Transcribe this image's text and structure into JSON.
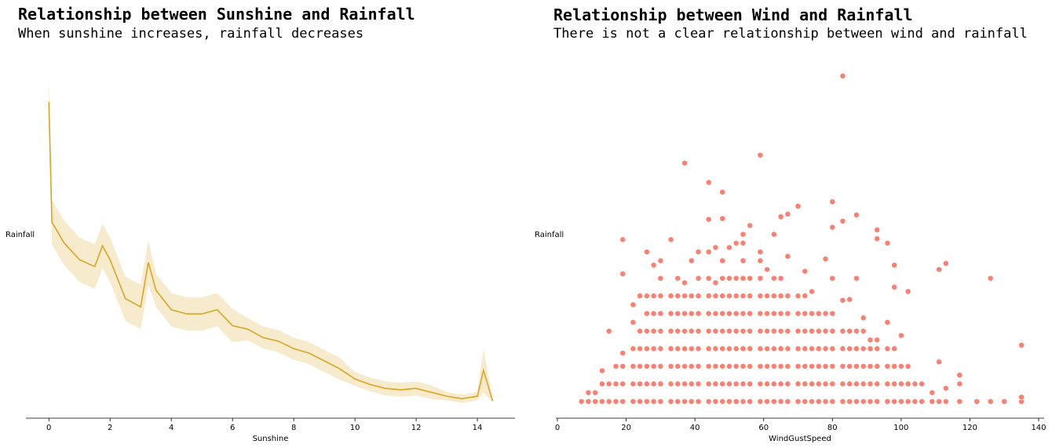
{
  "chart_data": [
    {
      "type": "line",
      "title": "Relationship between Sunshine and Rainfall",
      "subtitle": "When sunshine increases, rainfall decreases",
      "xlabel": "Sunshine",
      "ylabel": "Rainfall",
      "color": "#daa520",
      "x": [
        0,
        0.1,
        0.5,
        1,
        1.5,
        1.75,
        2,
        2.5,
        3,
        3.25,
        3.5,
        4,
        4.5,
        5,
        5.5,
        6,
        6.5,
        7,
        7.5,
        8,
        8.5,
        9,
        9.5,
        10,
        10.5,
        11,
        11.5,
        12,
        12.5,
        13,
        13.5,
        14,
        14.2,
        14.5
      ],
      "values": [
        10.87,
        6.55,
        5.8,
        5.2,
        4.95,
        5.7,
        5.2,
        3.8,
        3.5,
        5.1,
        4.1,
        3.4,
        3.25,
        3.25,
        3.4,
        2.83,
        2.7,
        2.4,
        2.27,
        2.0,
        1.84,
        1.56,
        1.28,
        0.91,
        0.71,
        0.57,
        0.52,
        0.57,
        0.43,
        0.29,
        0.2,
        0.29,
        1.22,
        0.12
      ],
      "ci_lower": [
        9.92,
        5.75,
        5.0,
        4.4,
        4.15,
        4.9,
        4.4,
        3.0,
        2.7,
        4.3,
        3.5,
        2.8,
        2.65,
        2.65,
        2.8,
        2.23,
        2.3,
        2.0,
        1.87,
        1.6,
        1.44,
        1.16,
        0.88,
        0.66,
        0.46,
        0.32,
        0.27,
        0.32,
        0.18,
        0.14,
        0.05,
        0.14,
        0.42,
        0.07
      ],
      "ci_upper": [
        11.82,
        7.35,
        6.6,
        6.0,
        5.75,
        6.5,
        6.0,
        4.6,
        4.3,
        5.9,
        4.7,
        4.0,
        3.85,
        3.85,
        4.0,
        3.43,
        3.1,
        2.8,
        2.67,
        2.4,
        2.24,
        1.96,
        1.68,
        1.16,
        0.96,
        0.82,
        0.77,
        0.82,
        0.68,
        0.44,
        0.35,
        0.44,
        2.02,
        0.17
      ],
      "xlim": [
        -0.75,
        15.23
      ],
      "ylim": [
        -0.5,
        12
      ],
      "xticks": [
        0,
        2,
        4,
        6,
        8,
        10,
        12,
        14
      ]
    },
    {
      "type": "scatter",
      "title": "Relationship between Wind and Rainfall",
      "subtitle": "There is not a clear relationship between wind and rainfall",
      "xlabel": "WindGustSpeed",
      "ylabel": "Rainfall",
      "color": "#fa8072",
      "x": [
        7,
        9,
        9,
        11,
        11,
        13,
        13,
        13,
        15,
        15,
        15,
        17,
        17,
        17,
        19,
        19,
        19,
        19,
        19,
        19,
        22,
        22,
        22,
        22,
        22,
        22,
        24,
        24,
        24,
        24,
        24,
        24,
        26,
        26,
        26,
        26,
        26,
        26,
        26,
        26,
        28,
        28,
        28,
        28,
        28,
        28,
        28,
        28,
        30,
        30,
        30,
        30,
        30,
        30,
        30,
        30,
        30,
        33,
        33,
        33,
        33,
        33,
        33,
        33,
        33,
        35,
        35,
        35,
        35,
        35,
        35,
        35,
        35,
        37,
        37,
        37,
        37,
        37,
        37,
        37,
        37,
        37,
        39,
        39,
        39,
        39,
        39,
        39,
        39,
        39,
        41,
        41,
        41,
        41,
        41,
        41,
        41,
        41,
        41,
        44,
        44,
        44,
        44,
        44,
        44,
        44,
        44,
        44,
        44,
        44,
        46,
        46,
        46,
        46,
        46,
        46,
        46,
        46,
        46,
        48,
        48,
        48,
        48,
        48,
        48,
        48,
        48,
        48,
        48,
        48,
        50,
        50,
        50,
        50,
        50,
        50,
        50,
        50,
        50,
        52,
        52,
        52,
        52,
        52,
        52,
        52,
        52,
        52,
        54,
        54,
        54,
        54,
        54,
        54,
        54,
        54,
        54,
        54,
        54,
        56,
        56,
        56,
        56,
        56,
        56,
        56,
        56,
        56,
        59,
        59,
        59,
        59,
        59,
        59,
        59,
        59,
        59,
        59,
        59,
        61,
        61,
        61,
        61,
        61,
        61,
        61,
        61,
        63,
        63,
        63,
        63,
        63,
        63,
        63,
        63,
        63,
        65,
        65,
        65,
        65,
        65,
        65,
        65,
        65,
        65,
        67,
        67,
        67,
        67,
        67,
        67,
        67,
        67,
        67,
        70,
        70,
        70,
        70,
        70,
        70,
        70,
        70,
        72,
        72,
        72,
        72,
        72,
        72,
        72,
        72,
        74,
        74,
        74,
        74,
        74,
        74,
        74,
        76,
        76,
        76,
        76,
        76,
        76,
        78,
        78,
        78,
        78,
        78,
        78,
        78,
        80,
        80,
        80,
        80,
        80,
        80,
        80,
        80,
        80,
        83,
        83,
        83,
        83,
        83,
        83,
        83,
        83,
        85,
        85,
        85,
        85,
        85,
        85,
        87,
        87,
        87,
        87,
        87,
        87,
        87,
        89,
        89,
        89,
        89,
        89,
        89,
        91,
        91,
        91,
        91,
        91,
        93,
        93,
        93,
        93,
        93,
        93,
        93,
        96,
        96,
        96,
        96,
        96,
        96,
        98,
        98,
        98,
        98,
        98,
        98,
        100,
        100,
        100,
        100,
        102,
        102,
        102,
        102,
        104,
        104,
        106,
        106,
        109,
        109,
        111,
        111,
        111,
        113,
        113,
        113,
        117,
        117,
        117,
        122,
        126,
        126,
        130,
        135,
        135,
        135
      ],
      "values": [
        0,
        0,
        10,
        0,
        10,
        0,
        20,
        35,
        0,
        20,
        80,
        0,
        20,
        40,
        0,
        20,
        40,
        55,
        145,
        184,
        0,
        20,
        40,
        60,
        90,
        110,
        0,
        20,
        40,
        60,
        80,
        120,
        0,
        20,
        40,
        60,
        80,
        100,
        120,
        170,
        0,
        20,
        40,
        60,
        80,
        100,
        120,
        155,
        0,
        20,
        40,
        60,
        80,
        100,
        120,
        140,
        160,
        0,
        20,
        40,
        60,
        80,
        100,
        120,
        184,
        0,
        20,
        40,
        60,
        80,
        100,
        120,
        140,
        0,
        20,
        40,
        60,
        80,
        100,
        120,
        135,
        271,
        0,
        20,
        40,
        60,
        80,
        100,
        120,
        160,
        0,
        20,
        40,
        60,
        80,
        100,
        120,
        140,
        170,
        0,
        20,
        40,
        60,
        80,
        100,
        120,
        140,
        170,
        207,
        249,
        0,
        20,
        40,
        60,
        80,
        100,
        120,
        135,
        175,
        0,
        20,
        40,
        60,
        80,
        100,
        120,
        140,
        160,
        208,
        238,
        0,
        20,
        40,
        60,
        80,
        100,
        120,
        140,
        175,
        0,
        20,
        40,
        60,
        80,
        100,
        120,
        140,
        180,
        0,
        20,
        40,
        60,
        80,
        100,
        120,
        140,
        160,
        180,
        190,
        0,
        20,
        40,
        60,
        80,
        100,
        120,
        140,
        200,
        0,
        20,
        40,
        60,
        80,
        100,
        120,
        140,
        160,
        170,
        280,
        0,
        20,
        40,
        60,
        80,
        100,
        120,
        150,
        0,
        20,
        40,
        60,
        80,
        100,
        120,
        140,
        190,
        0,
        20,
        40,
        60,
        80,
        100,
        120,
        140,
        210,
        0,
        20,
        40,
        60,
        80,
        100,
        120,
        165,
        213,
        0,
        20,
        40,
        60,
        80,
        100,
        120,
        222,
        0,
        20,
        40,
        60,
        80,
        100,
        120,
        148,
        0,
        20,
        40,
        60,
        80,
        100,
        125,
        0,
        20,
        40,
        60,
        80,
        100,
        0,
        20,
        40,
        60,
        80,
        100,
        162,
        0,
        20,
        40,
        60,
        80,
        100,
        140,
        198,
        227,
        0,
        20,
        40,
        60,
        80,
        115,
        205,
        370,
        0,
        20,
        40,
        60,
        80,
        116,
        0,
        20,
        40,
        60,
        80,
        140,
        212,
        0,
        20,
        40,
        60,
        80,
        95,
        0,
        20,
        40,
        60,
        70,
        0,
        20,
        40,
        60,
        70,
        185,
        195,
        0,
        20,
        40,
        60,
        90,
        180,
        0,
        20,
        40,
        60,
        130,
        155,
        0,
        20,
        40,
        75,
        0,
        20,
        40,
        125,
        0,
        20,
        0,
        20,
        0,
        10,
        0,
        45,
        150,
        0,
        15,
        157,
        0,
        20,
        30,
        0,
        0,
        140,
        0,
        0,
        5,
        64
      ],
      "xlim": [
        -0.46,
        141.6
      ],
      "ylim": [
        -19,
        385
      ],
      "xticks": [
        0,
        20,
        40,
        60,
        80,
        100,
        120,
        140
      ]
    }
  ]
}
